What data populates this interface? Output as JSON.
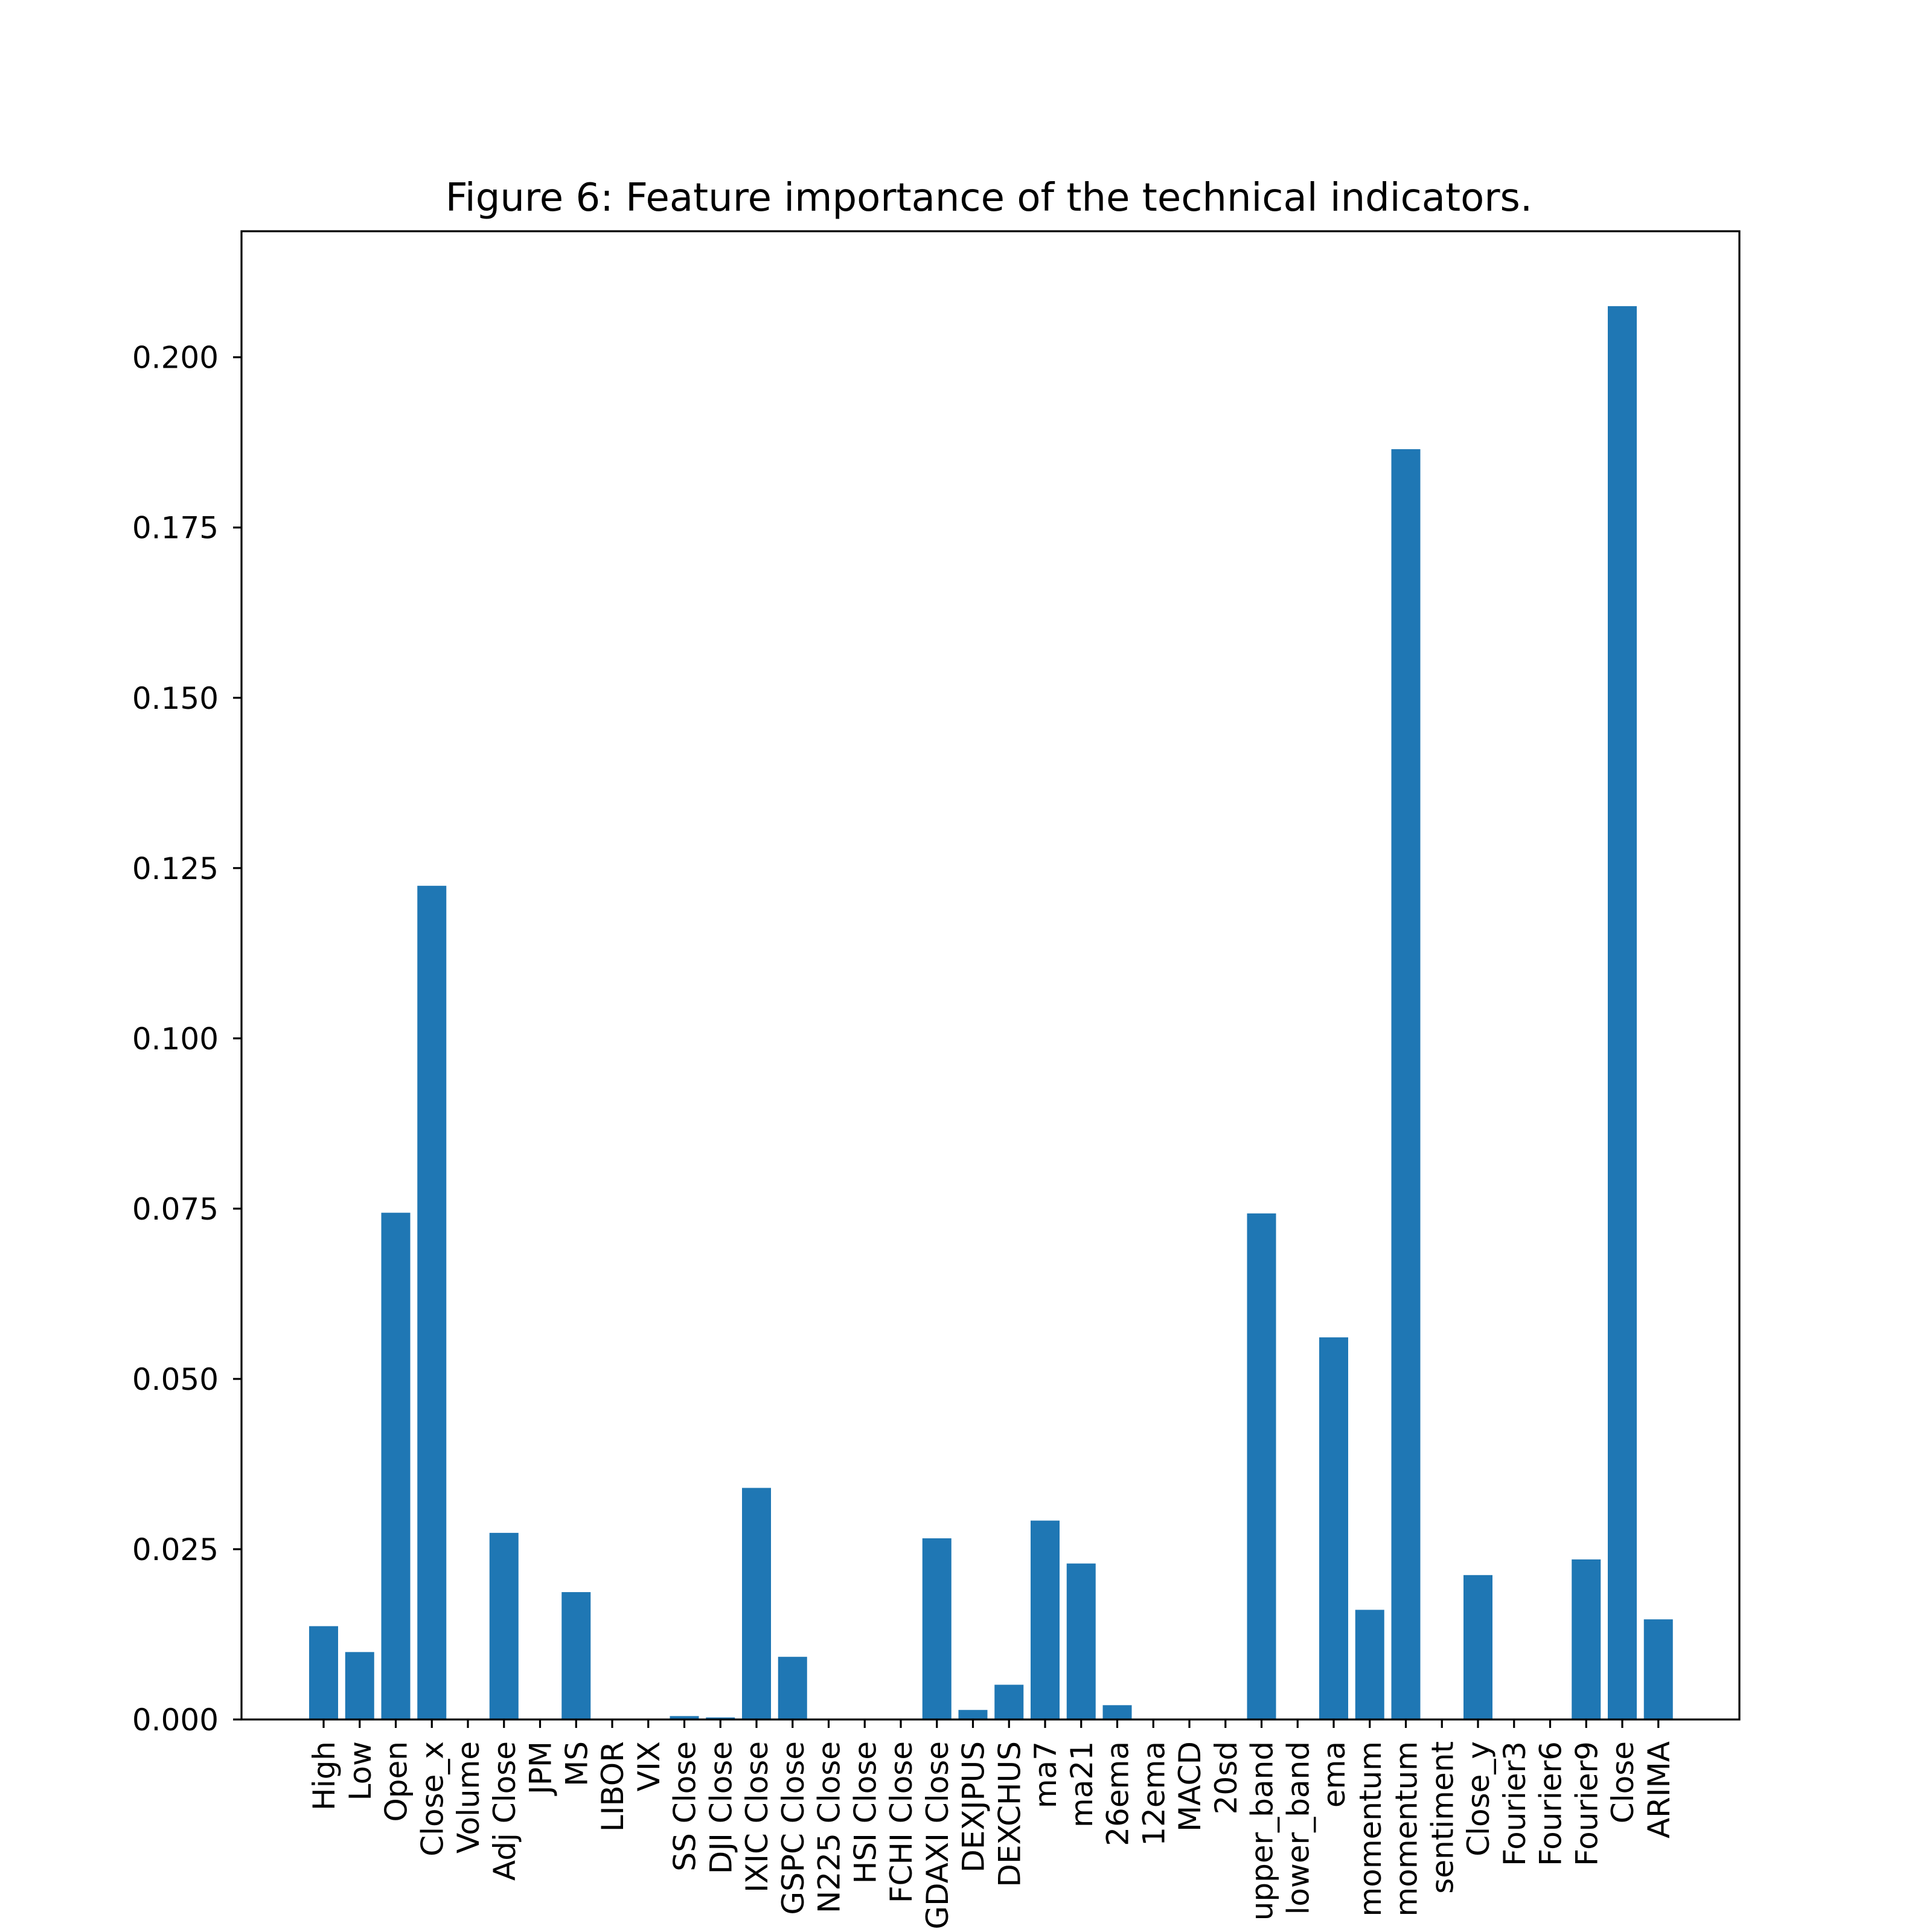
{
  "chart_data": {
    "type": "bar",
    "title": "Figure 6: Feature importance of the technical indicators.",
    "xlabel": "",
    "ylabel": "",
    "ylim": [
      0,
      0.2185
    ],
    "yticks": [
      "0.000",
      "0.025",
      "0.050",
      "0.075",
      "0.100",
      "0.125",
      "0.150",
      "0.175",
      "0.200"
    ],
    "grid": false,
    "legend": "none",
    "bar_color": "#1f77b4",
    "categories": [
      "High",
      "Low",
      "Open",
      "Close_x",
      "Volume",
      "Adj Close",
      "JPM",
      "MS",
      "LIBOR",
      "VIX",
      "SS Close",
      "DJI Close",
      "IXIC Close",
      "GSPC Close",
      "N225 Close",
      "HSI Close",
      "FCHI Close",
      "GDAXI Close",
      "DEXJPUS",
      "DEXCHUS",
      "ma7",
      "ma21",
      "26ema",
      "12ema",
      "MACD",
      "20sd",
      "upper_band",
      "lower_band",
      "ema",
      "momentum",
      "momentum",
      "sentiment",
      "Close_y",
      "Fourier3",
      "Fourier6",
      "Fourier9",
      "Close",
      "ARIMA"
    ],
    "values": [
      0.0137,
      0.0099,
      0.0744,
      0.1224,
      0.0,
      0.0274,
      0.0,
      0.0187,
      0.0,
      0.0,
      0.0005,
      0.0003,
      0.034,
      0.0092,
      0.0,
      0.0,
      0.0,
      0.0266,
      0.0014,
      0.0051,
      0.0292,
      0.0229,
      0.0021,
      0.0,
      0.0,
      0.0,
      0.0743,
      0.0,
      0.0561,
      0.0161,
      0.1865,
      0.0,
      0.0212,
      0.0,
      0.0,
      0.0235,
      0.2075,
      0.0147
    ]
  }
}
